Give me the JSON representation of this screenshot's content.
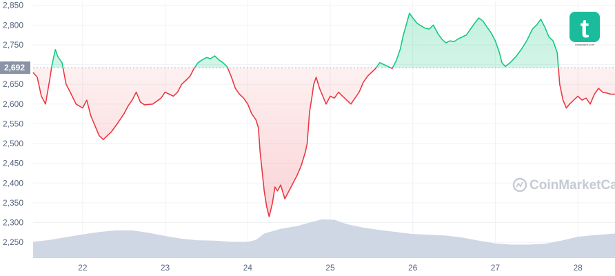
{
  "chart_data": {
    "type": "line",
    "title": "",
    "xlabel": "",
    "ylabel": "",
    "reference": {
      "value": 2692,
      "label": "2,692"
    },
    "ylim": [
      2210,
      2860
    ],
    "y_ticks": [
      2250,
      2300,
      2350,
      2400,
      2450,
      2500,
      2550,
      2600,
      2650,
      2700,
      2750,
      2800,
      2850
    ],
    "y_tick_labels": [
      "2,250",
      "2,300",
      "2,350",
      "2,400",
      "2,450",
      "2,500",
      "2,550",
      "2,600",
      "2,650",
      "2,700",
      "2,750",
      "2,800",
      "2,850"
    ],
    "xlim": [
      21.4,
      28.45
    ],
    "x_ticks": [
      22,
      23,
      24,
      25,
      26,
      27,
      28
    ],
    "x_tick_labels": [
      "22",
      "23",
      "24",
      "25",
      "26",
      "27",
      "28"
    ],
    "grid": true,
    "colors": {
      "above": "#16c784",
      "below": "#ea3943",
      "volume": "#cfd6e4",
      "grid": "#eff2f5",
      "reference": "#a6b0c3",
      "label_bg": "#8a94a6"
    },
    "series": [
      {
        "values": [
          [
            21.4,
            2680
          ],
          [
            21.45,
            2668
          ],
          [
            21.5,
            2620
          ],
          [
            21.55,
            2600
          ],
          [
            21.6,
            2660
          ],
          [
            21.63,
            2700
          ],
          [
            21.67,
            2738
          ],
          [
            21.7,
            2720
          ],
          [
            21.75,
            2705
          ],
          [
            21.8,
            2650
          ],
          [
            21.85,
            2630
          ],
          [
            21.92,
            2600
          ],
          [
            22.0,
            2590
          ],
          [
            22.05,
            2610
          ],
          [
            22.1,
            2570
          ],
          [
            22.15,
            2545
          ],
          [
            22.2,
            2520
          ],
          [
            22.25,
            2510
          ],
          [
            22.3,
            2520
          ],
          [
            22.35,
            2530
          ],
          [
            22.42,
            2550
          ],
          [
            22.5,
            2575
          ],
          [
            22.55,
            2595
          ],
          [
            22.6,
            2610
          ],
          [
            22.65,
            2630
          ],
          [
            22.7,
            2605
          ],
          [
            22.75,
            2598
          ],
          [
            22.85,
            2600
          ],
          [
            22.95,
            2615
          ],
          [
            23.0,
            2630
          ],
          [
            23.05,
            2625
          ],
          [
            23.1,
            2620
          ],
          [
            23.15,
            2630
          ],
          [
            23.2,
            2650
          ],
          [
            23.25,
            2660
          ],
          [
            23.3,
            2670
          ],
          [
            23.35,
            2690
          ],
          [
            23.4,
            2705
          ],
          [
            23.45,
            2712
          ],
          [
            23.5,
            2718
          ],
          [
            23.55,
            2715
          ],
          [
            23.6,
            2722
          ],
          [
            23.65,
            2712
          ],
          [
            23.7,
            2705
          ],
          [
            23.75,
            2695
          ],
          [
            23.8,
            2670
          ],
          [
            23.85,
            2640
          ],
          [
            23.9,
            2625
          ],
          [
            23.95,
            2615
          ],
          [
            24.0,
            2600
          ],
          [
            24.05,
            2575
          ],
          [
            24.1,
            2560
          ],
          [
            24.13,
            2540
          ],
          [
            24.15,
            2480
          ],
          [
            24.18,
            2420
          ],
          [
            24.2,
            2380
          ],
          [
            24.23,
            2340
          ],
          [
            24.26,
            2315
          ],
          [
            24.3,
            2350
          ],
          [
            24.33,
            2390
          ],
          [
            24.36,
            2380
          ],
          [
            24.4,
            2395
          ],
          [
            24.45,
            2360
          ],
          [
            24.5,
            2380
          ],
          [
            24.55,
            2400
          ],
          [
            24.6,
            2420
          ],
          [
            24.65,
            2445
          ],
          [
            24.7,
            2480
          ],
          [
            24.72,
            2500
          ],
          [
            24.75,
            2580
          ],
          [
            24.78,
            2620
          ],
          [
            24.8,
            2650
          ],
          [
            24.83,
            2668
          ],
          [
            24.87,
            2640
          ],
          [
            24.9,
            2625
          ],
          [
            24.95,
            2600
          ],
          [
            25.0,
            2620
          ],
          [
            25.05,
            2615
          ],
          [
            25.1,
            2630
          ],
          [
            25.15,
            2620
          ],
          [
            25.2,
            2610
          ],
          [
            25.25,
            2600
          ],
          [
            25.3,
            2615
          ],
          [
            25.35,
            2630
          ],
          [
            25.4,
            2655
          ],
          [
            25.45,
            2670
          ],
          [
            25.5,
            2680
          ],
          [
            25.55,
            2690
          ],
          [
            25.6,
            2705
          ],
          [
            25.65,
            2700
          ],
          [
            25.7,
            2695
          ],
          [
            25.75,
            2690
          ],
          [
            25.8,
            2710
          ],
          [
            25.85,
            2740
          ],
          [
            25.88,
            2770
          ],
          [
            25.92,
            2800
          ],
          [
            25.96,
            2830
          ],
          [
            26.0,
            2818
          ],
          [
            26.05,
            2805
          ],
          [
            26.1,
            2798
          ],
          [
            26.15,
            2792
          ],
          [
            26.2,
            2790
          ],
          [
            26.25,
            2800
          ],
          [
            26.3,
            2780
          ],
          [
            26.35,
            2765
          ],
          [
            26.4,
            2755
          ],
          [
            26.45,
            2760
          ],
          [
            26.5,
            2758
          ],
          [
            26.55,
            2765
          ],
          [
            26.6,
            2770
          ],
          [
            26.65,
            2775
          ],
          [
            26.7,
            2790
          ],
          [
            26.75,
            2805
          ],
          [
            26.8,
            2818
          ],
          [
            26.85,
            2810
          ],
          [
            26.9,
            2795
          ],
          [
            26.95,
            2780
          ],
          [
            27.0,
            2760
          ],
          [
            27.05,
            2730
          ],
          [
            27.08,
            2705
          ],
          [
            27.12,
            2695
          ],
          [
            27.18,
            2705
          ],
          [
            27.25,
            2720
          ],
          [
            27.32,
            2740
          ],
          [
            27.38,
            2760
          ],
          [
            27.45,
            2790
          ],
          [
            27.5,
            2800
          ],
          [
            27.55,
            2815
          ],
          [
            27.6,
            2795
          ],
          [
            27.65,
            2770
          ],
          [
            27.7,
            2760
          ],
          [
            27.75,
            2730
          ],
          [
            27.78,
            2650
          ],
          [
            27.82,
            2610
          ],
          [
            27.86,
            2590
          ],
          [
            27.9,
            2600
          ],
          [
            27.95,
            2610
          ],
          [
            28.0,
            2620
          ],
          [
            28.05,
            2610
          ],
          [
            28.1,
            2615
          ],
          [
            28.15,
            2600
          ],
          [
            28.2,
            2625
          ],
          [
            28.25,
            2640
          ],
          [
            28.3,
            2630
          ],
          [
            28.35,
            2628
          ],
          [
            28.4,
            2625
          ],
          [
            28.45,
            2625
          ]
        ]
      }
    ],
    "volume": [
      [
        21.4,
        2251
      ],
      [
        21.6,
        2256
      ],
      [
        21.8,
        2263
      ],
      [
        22.0,
        2270
      ],
      [
        22.2,
        2276
      ],
      [
        22.4,
        2280
      ],
      [
        22.6,
        2280
      ],
      [
        22.8,
        2274
      ],
      [
        23.0,
        2266
      ],
      [
        23.2,
        2259
      ],
      [
        23.4,
        2255
      ],
      [
        23.6,
        2254
      ],
      [
        23.8,
        2251
      ],
      [
        24.0,
        2251
      ],
      [
        24.1,
        2256
      ],
      [
        24.2,
        2272
      ],
      [
        24.4,
        2284
      ],
      [
        24.6,
        2291
      ],
      [
        24.75,
        2300
      ],
      [
        24.9,
        2308
      ],
      [
        25.05,
        2307
      ],
      [
        25.2,
        2296
      ],
      [
        25.4,
        2287
      ],
      [
        25.6,
        2281
      ],
      [
        25.8,
        2276
      ],
      [
        26.0,
        2271
      ],
      [
        26.2,
        2269
      ],
      [
        26.4,
        2267
      ],
      [
        26.6,
        2262
      ],
      [
        26.8,
        2254
      ],
      [
        27.0,
        2247
      ],
      [
        27.2,
        2244
      ],
      [
        27.4,
        2244
      ],
      [
        27.6,
        2246
      ],
      [
        27.8,
        2254
      ],
      [
        28.0,
        2264
      ],
      [
        28.2,
        2268
      ],
      [
        28.45,
        2272
      ]
    ],
    "watermark": "CoinMarketCap",
    "logo": {
      "glyph": "t",
      "caption": "coingraphs.com",
      "color": "#1abc9c"
    }
  }
}
